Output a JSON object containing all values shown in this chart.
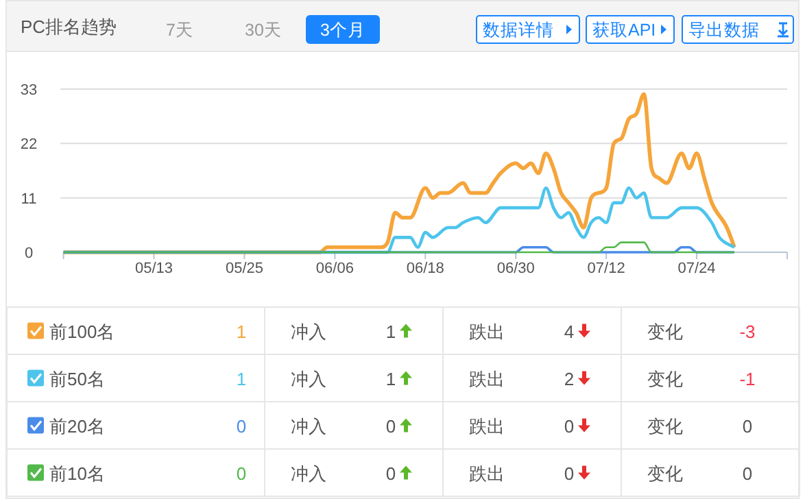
{
  "chart_data": {
    "type": "line",
    "title": "PC排名趋势",
    "annotations": [
      "7天",
      "30天",
      "3个月",
      "数据详情",
      "获取API",
      "导出数据",
      "1",
      "冲入",
      "1",
      "跌出",
      "4",
      "变化",
      "-3",
      "1",
      "冲入",
      "1",
      "跌出",
      "2",
      "变化",
      "-1",
      "0",
      "冲入",
      "0",
      "跌出",
      "0",
      "变化",
      "0",
      "0",
      "冲入",
      "0",
      "跌出",
      "0",
      "变化",
      "0"
    ],
    "xlim": [
      "--05-01",
      "--08-05"
    ],
    "xticks": [
      {
        "value": "--05-01",
        "label": null
      },
      {
        "value": "--05-13",
        "label": "05/13"
      },
      {
        "value": "--05-25",
        "label": "05/25"
      },
      {
        "value": "--06-06",
        "label": "06/06"
      },
      {
        "value": "--06-18",
        "label": "06/18"
      },
      {
        "value": "--06-30",
        "label": "06/30"
      },
      {
        "value": "--07-12",
        "label": "07/12"
      },
      {
        "value": "--07-24",
        "label": "07/24"
      },
      {
        "value": "--08-05",
        "label": null
      }
    ],
    "ylim": [
      0,
      33
    ],
    "yticks": [
      0,
      11,
      22,
      33
    ],
    "grid": "y",
    "legend": "bottom",
    "series": [
      {
        "name": "前100名",
        "color": "#f5a53b",
        "x": [
          "--05-01",
          "--06-04",
          "--06-05",
          "--06-12",
          "--06-13",
          "--06-14",
          "--06-15",
          "--06-16",
          "--06-18",
          "--06-19",
          "--06-20",
          "--06-21",
          "--06-23",
          "--06-24",
          "--06-26",
          "--06-27",
          "--06-28",
          "--06-30",
          "--07-01",
          "--07-02",
          "--07-03",
          "--07-04",
          "--07-05",
          "--07-06",
          "--07-07",
          "--07-08",
          "--07-09",
          "--07-10",
          "--07-11",
          "--07-12",
          "--07-13",
          "--07-14",
          "--07-15",
          "--07-16",
          "--07-17",
          "--07-18",
          "--07-19",
          "--07-20",
          "--07-22",
          "--07-23",
          "--07-24",
          "--07-25",
          "--07-26",
          "--07-28",
          "--07-29"
        ],
        "values": [
          0,
          0,
          1,
          1,
          2,
          8,
          7,
          7,
          13,
          11,
          12,
          12,
          14,
          12,
          12,
          14,
          16,
          18,
          17,
          18,
          16,
          20,
          17,
          12,
          10,
          8,
          5,
          11,
          12,
          13,
          22,
          23,
          27,
          28,
          32,
          17,
          15,
          14,
          20,
          17,
          20,
          15,
          10,
          5,
          1
        ]
      },
      {
        "name": "前50名",
        "color": "#4dc4ec",
        "x": [
          "--05-01",
          "--06-13",
          "--06-14",
          "--06-16",
          "--06-17",
          "--06-18",
          "--06-19",
          "--06-21",
          "--06-22",
          "--06-23",
          "--06-25",
          "--06-26",
          "--06-28",
          "--07-03",
          "--07-04",
          "--07-05",
          "--07-06",
          "--07-07",
          "--07-08",
          "--07-09",
          "--07-10",
          "--07-11",
          "--07-12",
          "--07-13",
          "--07-14",
          "--07-15",
          "--07-16",
          "--07-17",
          "--07-18",
          "--07-20",
          "--07-22",
          "--07-24",
          "--07-26",
          "--07-27",
          "--07-29"
        ],
        "values": [
          0,
          0,
          3,
          3,
          1,
          4,
          3,
          5,
          5,
          6,
          7,
          6,
          9,
          9,
          13,
          9,
          7,
          8,
          5,
          3,
          6,
          7,
          6,
          10,
          10,
          13,
          11,
          12,
          7,
          7,
          9,
          9,
          6,
          3,
          1
        ]
      },
      {
        "name": "前20名",
        "color": "#4a8ce8",
        "x": [
          "--05-01",
          "--06-30",
          "--07-01",
          "--07-04",
          "--07-05",
          "--07-21",
          "--07-22",
          "--07-23",
          "--07-24",
          "--07-29"
        ],
        "values": [
          0,
          0,
          1,
          1,
          0,
          0,
          1,
          1,
          0,
          0
        ]
      },
      {
        "name": "前10名",
        "color": "#52b94a",
        "x": [
          "--05-01",
          "--07-11",
          "--07-12",
          "--07-13",
          "--07-14",
          "--07-17",
          "--07-18",
          "--07-29"
        ],
        "values": [
          0,
          0,
          1,
          1,
          2,
          2,
          0,
          0
        ]
      }
    ]
  }
}
